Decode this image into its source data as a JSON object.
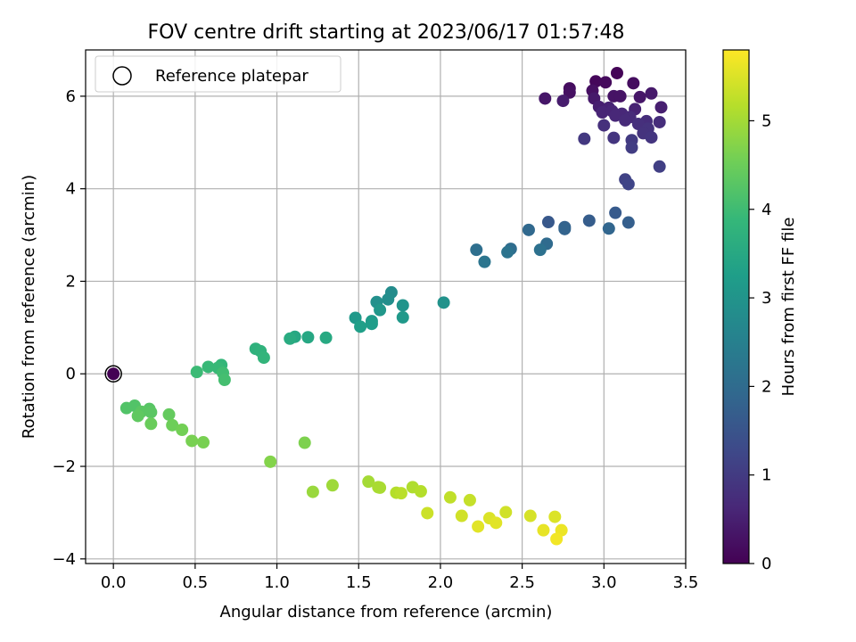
{
  "chart_data": {
    "type": "scatter",
    "title": "FOV centre drift starting at 2023/06/17 01:57:48",
    "xlabel": "Angular distance from reference (arcmin)",
    "ylabel": "Rotation from reference (arcmin)",
    "xlim": [
      -0.17,
      3.5
    ],
    "ylim": [
      -4.1,
      7.0
    ],
    "xticks": [
      "0.0",
      "0.5",
      "1.0",
      "1.5",
      "2.0",
      "2.5",
      "3.0",
      "3.5"
    ],
    "xtick_values": [
      0,
      0.5,
      1.0,
      1.5,
      2.0,
      2.5,
      3.0,
      3.5
    ],
    "yticks": [
      "−4",
      "−2",
      "0",
      "2",
      "4",
      "6"
    ],
    "ytick_values": [
      -4,
      -2,
      0,
      2,
      4,
      6
    ],
    "grid": true,
    "legend_position": "top-left",
    "legend": [
      "Reference platepar"
    ],
    "reference_point": {
      "x": 0.0,
      "y": 0.0
    },
    "colorbar": {
      "label": "Hours from first FF file",
      "range": [
        0,
        5.8
      ],
      "ticks": [
        "0",
        "1",
        "2",
        "3",
        "4",
        "5"
      ],
      "tick_values": [
        0,
        1,
        2,
        3,
        4,
        5
      ],
      "colormap": [
        "#440154",
        "#482878",
        "#3e4989",
        "#31688e",
        "#26828e",
        "#1f9e89",
        "#35b779",
        "#6ece58",
        "#b5de2b",
        "#fde725"
      ]
    },
    "points": [
      {
        "x": 3.08,
        "y": 6.5,
        "c": 0.05
      },
      {
        "x": 2.95,
        "y": 6.32,
        "c": 0.1
      },
      {
        "x": 3.01,
        "y": 6.3,
        "c": 0.15
      },
      {
        "x": 3.18,
        "y": 6.28,
        "c": 0.2
      },
      {
        "x": 2.79,
        "y": 6.17,
        "c": 0.2
      },
      {
        "x": 2.93,
        "y": 6.12,
        "c": 0.25
      },
      {
        "x": 2.79,
        "y": 6.08,
        "c": 0.25
      },
      {
        "x": 3.06,
        "y": 6.0,
        "c": 0.3
      },
      {
        "x": 3.1,
        "y": 6.0,
        "c": 0.3
      },
      {
        "x": 3.22,
        "y": 5.98,
        "c": 0.35
      },
      {
        "x": 2.64,
        "y": 5.95,
        "c": 0.35
      },
      {
        "x": 2.94,
        "y": 5.95,
        "c": 0.4
      },
      {
        "x": 3.29,
        "y": 6.06,
        "c": 0.4
      },
      {
        "x": 2.75,
        "y": 5.9,
        "c": 0.45
      },
      {
        "x": 3.35,
        "y": 5.76,
        "c": 0.5
      },
      {
        "x": 2.97,
        "y": 5.77,
        "c": 0.5
      },
      {
        "x": 3.03,
        "y": 5.75,
        "c": 0.55
      },
      {
        "x": 3.19,
        "y": 5.72,
        "c": 0.55
      },
      {
        "x": 2.99,
        "y": 5.65,
        "c": 0.6
      },
      {
        "x": 3.05,
        "y": 5.68,
        "c": 0.6
      },
      {
        "x": 3.11,
        "y": 5.62,
        "c": 0.65
      },
      {
        "x": 3.07,
        "y": 5.58,
        "c": 0.65
      },
      {
        "x": 3.16,
        "y": 5.55,
        "c": 0.7
      },
      {
        "x": 3.13,
        "y": 5.48,
        "c": 0.7
      },
      {
        "x": 3.26,
        "y": 5.46,
        "c": 0.75
      },
      {
        "x": 3.34,
        "y": 5.44,
        "c": 0.75
      },
      {
        "x": 3.21,
        "y": 5.4,
        "c": 0.8
      },
      {
        "x": 3.0,
        "y": 5.37,
        "c": 0.8
      },
      {
        "x": 3.27,
        "y": 5.3,
        "c": 0.85
      },
      {
        "x": 3.24,
        "y": 5.2,
        "c": 0.85
      },
      {
        "x": 3.29,
        "y": 5.11,
        "c": 0.9
      },
      {
        "x": 3.06,
        "y": 5.1,
        "c": 0.9
      },
      {
        "x": 2.88,
        "y": 5.08,
        "c": 0.95
      },
      {
        "x": 3.17,
        "y": 5.05,
        "c": 1.0
      },
      {
        "x": 3.17,
        "y": 4.89,
        "c": 1.05
      },
      {
        "x": 3.34,
        "y": 4.48,
        "c": 1.1
      },
      {
        "x": 3.13,
        "y": 4.2,
        "c": 1.15
      },
      {
        "x": 3.15,
        "y": 4.1,
        "c": 1.2
      },
      {
        "x": 2.66,
        "y": 3.28,
        "c": 1.6
      },
      {
        "x": 3.07,
        "y": 3.48,
        "c": 1.65
      },
      {
        "x": 2.91,
        "y": 3.31,
        "c": 1.7
      },
      {
        "x": 3.15,
        "y": 3.27,
        "c": 1.75
      },
      {
        "x": 2.76,
        "y": 3.17,
        "c": 1.8
      },
      {
        "x": 2.76,
        "y": 3.13,
        "c": 1.85
      },
      {
        "x": 3.03,
        "y": 3.14,
        "c": 1.9
      },
      {
        "x": 2.54,
        "y": 3.11,
        "c": 1.95
      },
      {
        "x": 2.65,
        "y": 2.81,
        "c": 2.0
      },
      {
        "x": 2.43,
        "y": 2.7,
        "c": 2.05
      },
      {
        "x": 2.22,
        "y": 2.68,
        "c": 2.1
      },
      {
        "x": 2.61,
        "y": 2.68,
        "c": 2.15
      },
      {
        "x": 2.41,
        "y": 2.63,
        "c": 2.2
      },
      {
        "x": 2.27,
        "y": 2.42,
        "c": 2.25
      },
      {
        "x": 1.7,
        "y": 1.76,
        "c": 2.8
      },
      {
        "x": 1.68,
        "y": 1.61,
        "c": 2.85
      },
      {
        "x": 1.61,
        "y": 1.55,
        "c": 2.9
      },
      {
        "x": 2.02,
        "y": 1.54,
        "c": 2.95
      },
      {
        "x": 1.77,
        "y": 1.48,
        "c": 3.0
      },
      {
        "x": 1.63,
        "y": 1.38,
        "c": 3.05
      },
      {
        "x": 1.48,
        "y": 1.21,
        "c": 3.1
      },
      {
        "x": 1.77,
        "y": 1.22,
        "c": 3.1
      },
      {
        "x": 1.58,
        "y": 1.14,
        "c": 3.15
      },
      {
        "x": 1.58,
        "y": 1.08,
        "c": 3.2
      },
      {
        "x": 1.51,
        "y": 1.02,
        "c": 3.25
      },
      {
        "x": 1.11,
        "y": 0.8,
        "c": 3.45
      },
      {
        "x": 1.19,
        "y": 0.79,
        "c": 3.45
      },
      {
        "x": 1.3,
        "y": 0.78,
        "c": 3.5
      },
      {
        "x": 1.08,
        "y": 0.76,
        "c": 3.55
      },
      {
        "x": 0.87,
        "y": 0.54,
        "c": 3.7
      },
      {
        "x": 0.9,
        "y": 0.49,
        "c": 3.75
      },
      {
        "x": 0.92,
        "y": 0.35,
        "c": 3.8
      },
      {
        "x": 0.66,
        "y": 0.19,
        "c": 3.85
      },
      {
        "x": 0.58,
        "y": 0.15,
        "c": 3.9
      },
      {
        "x": 0.64,
        "y": 0.13,
        "c": 3.9
      },
      {
        "x": 0.51,
        "y": 0.04,
        "c": 3.95
      },
      {
        "x": 0.67,
        "y": 0.02,
        "c": 4.0
      },
      {
        "x": 0.68,
        "y": -0.13,
        "c": 4.05
      },
      {
        "x": 0.08,
        "y": -0.74,
        "c": 4.2
      },
      {
        "x": 0.13,
        "y": -0.69,
        "c": 4.2
      },
      {
        "x": 0.22,
        "y": -0.76,
        "c": 4.25
      },
      {
        "x": 0.17,
        "y": -0.82,
        "c": 4.3
      },
      {
        "x": 0.23,
        "y": -0.83,
        "c": 4.3
      },
      {
        "x": 0.15,
        "y": -0.91,
        "c": 4.35
      },
      {
        "x": 0.34,
        "y": -0.88,
        "c": 4.4
      },
      {
        "x": 0.23,
        "y": -1.08,
        "c": 4.45
      },
      {
        "x": 0.36,
        "y": -1.11,
        "c": 4.5
      },
      {
        "x": 0.42,
        "y": -1.21,
        "c": 4.55
      },
      {
        "x": 0.48,
        "y": -1.45,
        "c": 4.6
      },
      {
        "x": 0.55,
        "y": -1.48,
        "c": 4.6
      },
      {
        "x": 1.17,
        "y": -1.49,
        "c": 4.65
      },
      {
        "x": 0.96,
        "y": -1.9,
        "c": 4.7
      },
      {
        "x": 1.22,
        "y": -2.55,
        "c": 4.9
      },
      {
        "x": 1.34,
        "y": -2.41,
        "c": 4.95
      },
      {
        "x": 1.56,
        "y": -2.33,
        "c": 5.0
      },
      {
        "x": 1.62,
        "y": -2.45,
        "c": 5.05
      },
      {
        "x": 1.63,
        "y": -2.46,
        "c": 5.05
      },
      {
        "x": 1.83,
        "y": -2.45,
        "c": 5.1
      },
      {
        "x": 1.88,
        "y": -2.54,
        "c": 5.15
      },
      {
        "x": 1.73,
        "y": -2.57,
        "c": 5.15
      },
      {
        "x": 1.76,
        "y": -2.58,
        "c": 5.2
      },
      {
        "x": 2.06,
        "y": -2.67,
        "c": 5.25
      },
      {
        "x": 2.18,
        "y": -2.73,
        "c": 5.3
      },
      {
        "x": 1.92,
        "y": -3.01,
        "c": 5.35
      },
      {
        "x": 2.4,
        "y": -2.99,
        "c": 5.4
      },
      {
        "x": 2.13,
        "y": -3.07,
        "c": 5.4
      },
      {
        "x": 2.55,
        "y": -3.07,
        "c": 5.45
      },
      {
        "x": 2.7,
        "y": -3.09,
        "c": 5.5
      },
      {
        "x": 2.3,
        "y": -3.12,
        "c": 5.5
      },
      {
        "x": 2.34,
        "y": -3.22,
        "c": 5.55
      },
      {
        "x": 2.23,
        "y": -3.3,
        "c": 5.55
      },
      {
        "x": 2.63,
        "y": -3.38,
        "c": 5.6
      },
      {
        "x": 2.74,
        "y": -3.38,
        "c": 5.65
      },
      {
        "x": 2.71,
        "y": -3.57,
        "c": 5.7
      }
    ]
  }
}
